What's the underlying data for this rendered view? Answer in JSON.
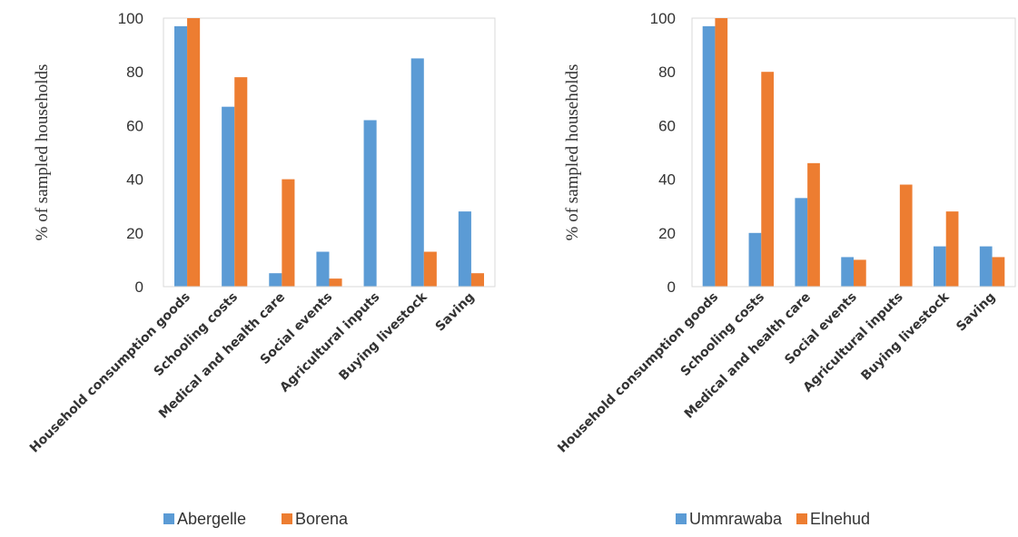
{
  "chart_data": [
    {
      "type": "bar",
      "categories": [
        "Household consumption goods",
        "Schooling costs",
        "Medical and health care",
        "Social events",
        "Agricultural inputs",
        "Buying livestock",
        "Saving"
      ],
      "series": [
        {
          "name": "Abergelle",
          "color": "#5B9BD5",
          "values": [
            97,
            67,
            5,
            13,
            62,
            85,
            28
          ]
        },
        {
          "name": "Borena",
          "color": "#ED7D31",
          "values": [
            100,
            78,
            40,
            3,
            0,
            13,
            5
          ]
        }
      ],
      "ylabel": "% of sampled households",
      "ylim": [
        0,
        100
      ],
      "yticks": [
        0,
        20,
        40,
        60,
        80,
        100
      ],
      "legend": "bottom",
      "grid": false
    },
    {
      "type": "bar",
      "categories": [
        "Household consumption goods",
        "Schooling costs",
        "Medical and health care",
        "Social events",
        "Agricultural inputs",
        "Buying livestock",
        "Saving"
      ],
      "series": [
        {
          "name": "Ummrawaba",
          "color": "#5B9BD5",
          "values": [
            97,
            20,
            33,
            11,
            0,
            15,
            15
          ]
        },
        {
          "name": "Elnehud",
          "color": "#ED7D31",
          "values": [
            100,
            80,
            46,
            10,
            38,
            28,
            11
          ]
        }
      ],
      "ylabel": "% of  sampled households",
      "ylim": [
        0,
        100
      ],
      "yticks": [
        0,
        20,
        40,
        60,
        80,
        100
      ],
      "legend": "bottom",
      "grid": false
    }
  ]
}
